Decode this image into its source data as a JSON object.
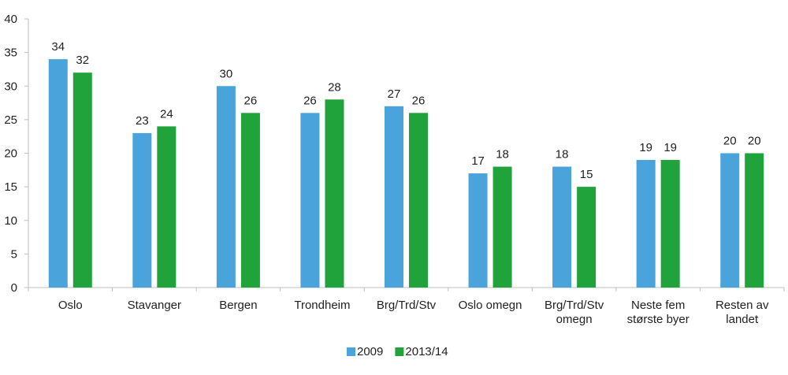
{
  "chart_data": {
    "type": "bar",
    "categories": [
      [
        "Oslo"
      ],
      [
        "Stavanger"
      ],
      [
        "Bergen"
      ],
      [
        "Trondheim"
      ],
      [
        "Brg/Trd/Stv"
      ],
      [
        "Oslo omegn"
      ],
      [
        "Brg/Trd/Stv",
        "omegn"
      ],
      [
        "Neste fem",
        "største byer"
      ],
      [
        "Resten av",
        "landet"
      ]
    ],
    "series": [
      {
        "name": "2009",
        "color": "#4aa3da",
        "values": [
          34,
          23,
          30,
          26,
          27,
          17,
          18,
          19,
          20
        ]
      },
      {
        "name": "2013/14",
        "color": "#1fa33a",
        "values": [
          32,
          24,
          26,
          28,
          26,
          18,
          15,
          19,
          20
        ]
      }
    ],
    "ylim": [
      0,
      40
    ],
    "yticks": [
      0,
      5,
      10,
      15,
      20,
      25,
      30,
      35,
      40
    ],
    "grid": false,
    "legend": "bottom-center"
  }
}
